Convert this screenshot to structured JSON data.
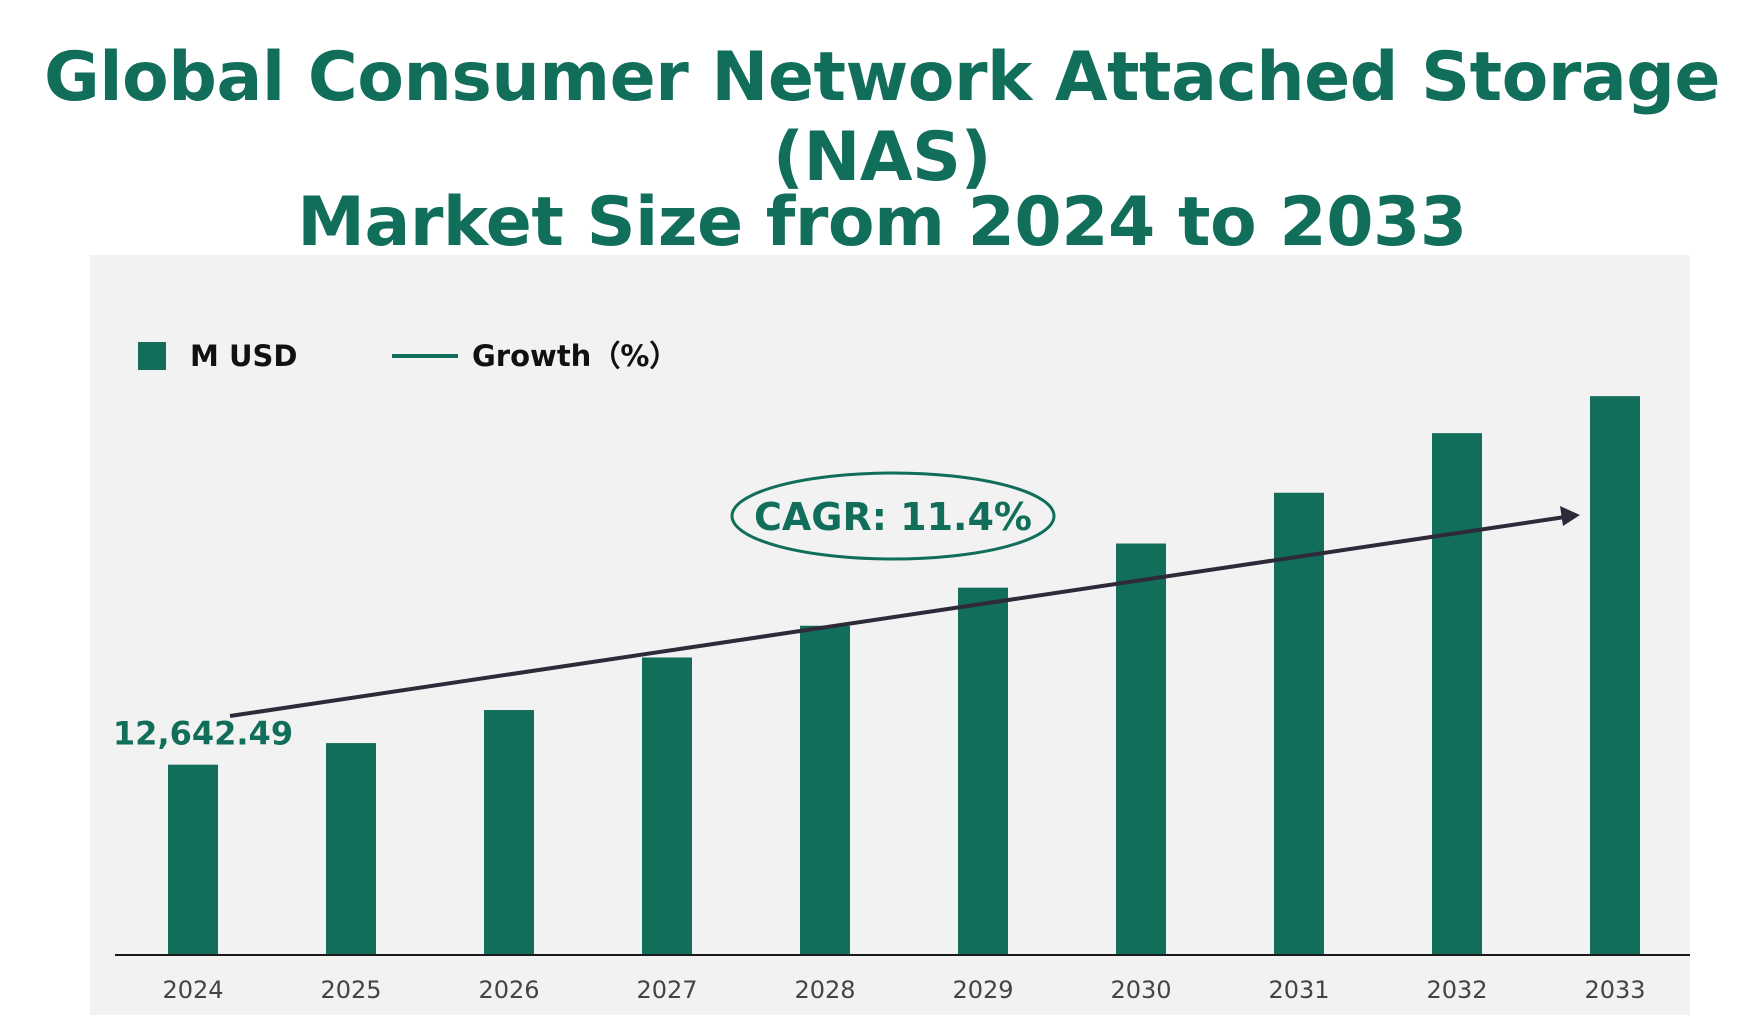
{
  "title_lines": [
    "Global Consumer Network Attached Storage (NAS)",
    "Market Size from 2024 to 2033"
  ],
  "colors": {
    "bar": "#116e5a",
    "plot_background": "#f2f2f2",
    "trend_arrow": "#2e2a3a",
    "text_accent": "#116e5a"
  },
  "chart_data": {
    "type": "bar",
    "title": "Global Consumer Network Attached Storage (NAS) Market Size from 2024 to 2033",
    "categories": [
      "2024",
      "2025",
      "2026",
      "2027",
      "2028",
      "2029",
      "2030",
      "2031",
      "2032",
      "2033"
    ],
    "series": [
      {
        "name": "M USD",
        "values": [
          12642.49,
          14084,
          16290,
          19800,
          21920,
          24460,
          27410,
          30800,
          34780,
          37250
        ]
      }
    ],
    "legend": {
      "placement": "top-left",
      "entries": [
        {
          "label": "M USD",
          "marker": "square"
        },
        {
          "label": "Growth（%）",
          "marker": "line"
        }
      ]
    },
    "data_labels": [
      {
        "category": "2024",
        "text": "12,642.49"
      }
    ],
    "annotation": {
      "text": "CAGR: 11.4%",
      "style": "ellipse"
    },
    "trend_arrow": true,
    "ylim": [
      0,
      41000
    ],
    "grid": false,
    "xlabel": "",
    "ylabel": ""
  }
}
